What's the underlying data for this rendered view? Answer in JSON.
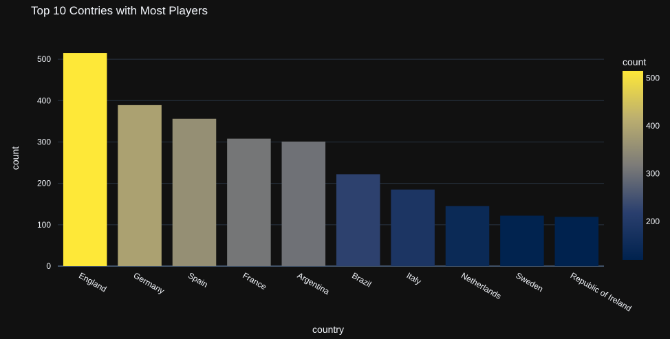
{
  "chart_data": {
    "type": "bar",
    "title": "Top 10 Contries with Most Players",
    "xlabel": "country",
    "ylabel": "count",
    "categories": [
      "England",
      "Germany",
      "Spain",
      "France",
      "Argentina",
      "Brazil",
      "Italy",
      "Netherlands",
      "Sweden",
      "Republic of Ireland"
    ],
    "values": [
      515,
      389,
      356,
      308,
      301,
      222,
      185,
      145,
      122,
      119
    ],
    "ylim": [
      0,
      540
    ],
    "yticks": [
      0,
      100,
      200,
      300,
      400,
      500
    ],
    "grid": true,
    "colorbar": {
      "title": "count",
      "range": [
        119,
        515
      ],
      "ticks": [
        200,
        300,
        400,
        500
      ],
      "colorscale": "cividis"
    }
  },
  "colors": {
    "background": "#111111",
    "grid": "#283442",
    "text": "#f2f5fa"
  }
}
